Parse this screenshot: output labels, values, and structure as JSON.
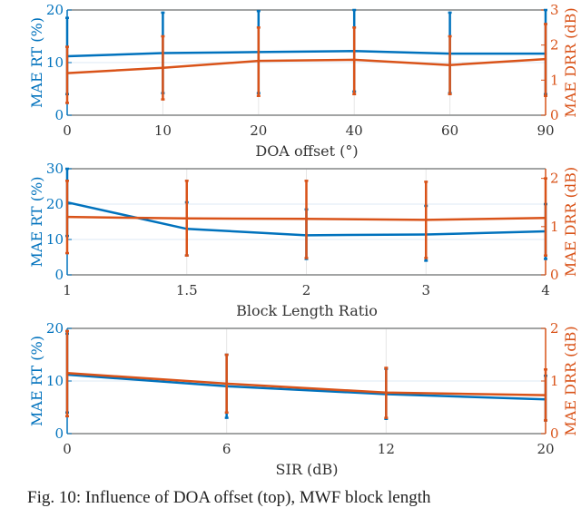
{
  "colors": {
    "rt": "#0072BD",
    "drr": "#D95319",
    "grid": "#e6e6e6",
    "axis": "#888888"
  },
  "caption": "Fig. 10: Influence of DOA offset (top), MWF block length",
  "chart_data": [
    {
      "type": "line",
      "title": "",
      "xlabel": "DOA offset (°)",
      "ylabel": "MAE RT (%)",
      "y2label": "MAE DRR (dB)",
      "categories": [
        "0",
        "10",
        "20",
        "40",
        "60",
        "90"
      ],
      "ylim": [
        0,
        20
      ],
      "yticks": [
        0,
        10,
        20
      ],
      "y2lim": [
        0,
        3
      ],
      "y2ticks": [
        0,
        1,
        2,
        3
      ],
      "grid": true,
      "series": [
        {
          "name": "MAE RT",
          "axis": "left",
          "values": [
            11.2,
            11.8,
            12.0,
            12.2,
            11.7,
            11.7
          ],
          "err_low": [
            4.0,
            4.2,
            4.2,
            4.5,
            4.2,
            4.0
          ],
          "err_high": [
            18.5,
            19.5,
            19.8,
            20.0,
            19.5,
            20.0
          ]
        },
        {
          "name": "MAE DRR",
          "axis": "right",
          "values": [
            1.2,
            1.35,
            1.55,
            1.58,
            1.43,
            1.6
          ],
          "err_low": [
            0.35,
            0.45,
            0.55,
            0.6,
            0.6,
            0.55
          ],
          "err_high": [
            1.95,
            2.25,
            2.5,
            2.5,
            2.25,
            2.6
          ]
        }
      ]
    },
    {
      "type": "line",
      "title": "",
      "xlabel": "Block Length Ratio",
      "ylabel": "MAE RT (%)",
      "y2label": "MAE DRR (dB)",
      "categories": [
        "1",
        "1.5",
        "2",
        "3",
        "4"
      ],
      "ylim": [
        0,
        30
      ],
      "yticks": [
        0,
        10,
        20,
        30
      ],
      "y2lim": [
        0,
        2.2
      ],
      "y2ticks": [
        0,
        1,
        2
      ],
      "grid": true,
      "series": [
        {
          "name": "MAE RT",
          "axis": "left",
          "values": [
            20.5,
            13.0,
            11.2,
            11.4,
            12.3
          ],
          "err_low": [
            11.0,
            5.5,
            4.5,
            4.0,
            4.5
          ],
          "err_high": [
            30.0,
            20.5,
            18.5,
            19.5,
            20.0
          ]
        },
        {
          "name": "MAE DRR",
          "axis": "right",
          "values": [
            1.2,
            1.17,
            1.16,
            1.14,
            1.18
          ],
          "err_low": [
            0.45,
            0.4,
            0.35,
            0.35,
            0.4
          ],
          "err_high": [
            1.95,
            1.95,
            1.95,
            1.93,
            2.0
          ]
        }
      ]
    },
    {
      "type": "line",
      "title": "",
      "xlabel": "SIR (dB)",
      "ylabel": "MAE RT (%)",
      "y2label": "MAE DRR (dB)",
      "categories": [
        "0",
        "6",
        "12",
        "20"
      ],
      "ylim": [
        0,
        20
      ],
      "yticks": [
        0,
        10,
        20
      ],
      "y2lim": [
        0,
        2
      ],
      "y2ticks": [
        0,
        1,
        2
      ],
      "grid": true,
      "series": [
        {
          "name": "MAE RT",
          "axis": "left",
          "values": [
            11.2,
            9.0,
            7.5,
            6.5
          ],
          "err_low": [
            4.0,
            3.0,
            2.8,
            2.5
          ],
          "err_high": [
            19.0,
            15.0,
            12.3,
            11.0
          ]
        },
        {
          "name": "MAE DRR",
          "axis": "right",
          "values": [
            1.15,
            0.95,
            0.78,
            0.73
          ],
          "err_low": [
            0.33,
            0.4,
            0.3,
            0.25
          ],
          "err_high": [
            1.95,
            1.5,
            1.25,
            1.22
          ]
        }
      ]
    }
  ]
}
